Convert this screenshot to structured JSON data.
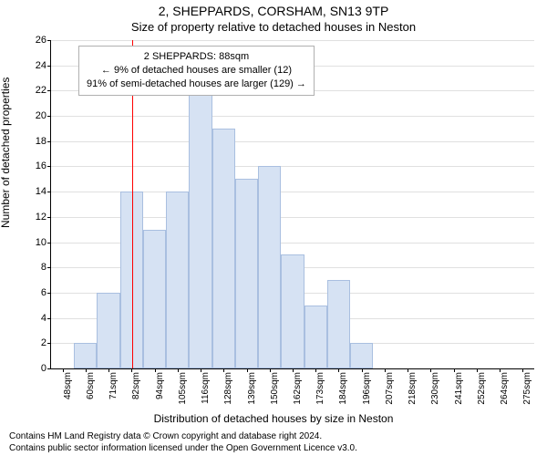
{
  "title": "2, SHEPPARDS, CORSHAM, SN13 9TP",
  "subtitle": "Size of property relative to detached houses in Neston",
  "ylabel": "Number of detached properties",
  "xlabel": "Distribution of detached houses by size in Neston",
  "chart": {
    "type": "histogram",
    "ylim": [
      0,
      26
    ],
    "ytick_step": 2,
    "bar_fill": "#d6e2f3",
    "bar_border": "#a9bfe0",
    "grid_color": "#e0e0e0",
    "marker_value": 88,
    "marker_color": "#ff0000",
    "x_start": 48,
    "x_bin_width": 11.35,
    "bins": [
      {
        "label": "48sqm",
        "count": 0
      },
      {
        "label": "60sqm",
        "count": 2
      },
      {
        "label": "71sqm",
        "count": 6
      },
      {
        "label": "82sqm",
        "count": 14
      },
      {
        "label": "94sqm",
        "count": 11
      },
      {
        "label": "105sqm",
        "count": 14
      },
      {
        "label": "116sqm",
        "count": 22
      },
      {
        "label": "128sqm",
        "count": 19
      },
      {
        "label": "139sqm",
        "count": 15
      },
      {
        "label": "150sqm",
        "count": 16
      },
      {
        "label": "162sqm",
        "count": 9
      },
      {
        "label": "173sqm",
        "count": 5
      },
      {
        "label": "184sqm",
        "count": 7
      },
      {
        "label": "196sqm",
        "count": 2
      },
      {
        "label": "207sqm",
        "count": 0
      },
      {
        "label": "218sqm",
        "count": 0
      },
      {
        "label": "230sqm",
        "count": 0
      },
      {
        "label": "241sqm",
        "count": 0
      },
      {
        "label": "252sqm",
        "count": 0
      },
      {
        "label": "264sqm",
        "count": 0
      },
      {
        "label": "275sqm",
        "count": 0
      }
    ]
  },
  "note": {
    "line1": "2 SHEPPARDS: 88sqm",
    "line2": "← 9% of detached houses are smaller (12)",
    "line3": "91% of semi-detached houses are larger (129) →"
  },
  "footer": {
    "line1": "Contains HM Land Registry data © Crown copyright and database right 2024.",
    "line2": "Contains public sector information licensed under the Open Government Licence v3.0."
  }
}
